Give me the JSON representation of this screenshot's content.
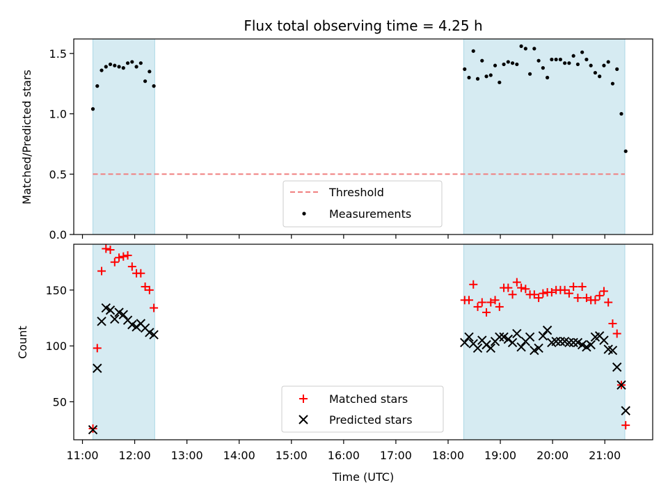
{
  "chart_data": [
    {
      "type": "scatter",
      "title": "Flux total observing time = 4.25 h",
      "ylabel": "Matched/Predicted stars",
      "xlabel": "",
      "xlim": [
        "10:50",
        "21:55"
      ],
      "ylim": [
        0,
        1.62
      ],
      "yticks": [
        0.0,
        0.5,
        1.0,
        1.5
      ],
      "ytick_labels": [
        "0.0",
        "0.5",
        "1.0",
        "1.5"
      ],
      "grid": false,
      "legend_position": "lower-center",
      "observing_windows": [
        [
          "11:12",
          "12:23"
        ],
        [
          "18:18",
          "21:23"
        ]
      ],
      "threshold": {
        "name": "Threshold",
        "value": 0.5,
        "x_range": [
          "11:12",
          "21:23"
        ],
        "color": "#f08080",
        "style": "dashed"
      },
      "series": [
        {
          "name": "Measurements",
          "color": "#000000",
          "marker": "dot",
          "x": [
            "11:12",
            "11:17",
            "11:22",
            "11:27",
            "11:32",
            "11:37",
            "11:42",
            "11:47",
            "11:52",
            "11:57",
            "12:02",
            "12:07",
            "12:12",
            "12:17",
            "12:22",
            "18:19",
            "18:24",
            "18:29",
            "18:34",
            "18:39",
            "18:44",
            "18:49",
            "18:54",
            "18:59",
            "19:04",
            "19:09",
            "19:14",
            "19:19",
            "19:24",
            "19:29",
            "19:34",
            "19:39",
            "19:44",
            "19:49",
            "19:54",
            "19:59",
            "20:04",
            "20:09",
            "20:14",
            "20:19",
            "20:24",
            "20:29",
            "20:34",
            "20:39",
            "20:44",
            "20:49",
            "20:54",
            "20:59",
            "21:04",
            "21:09",
            "21:14",
            "21:19",
            "21:24"
          ],
          "y": [
            1.04,
            1.23,
            1.36,
            1.39,
            1.41,
            1.4,
            1.39,
            1.38,
            1.42,
            1.43,
            1.39,
            1.42,
            1.27,
            1.35,
            1.23,
            1.37,
            1.3,
            1.52,
            1.29,
            1.44,
            1.31,
            1.32,
            1.4,
            1.26,
            1.41,
            1.43,
            1.42,
            1.41,
            1.56,
            1.54,
            1.33,
            1.54,
            1.44,
            1.38,
            1.3,
            1.45,
            1.45,
            1.45,
            1.42,
            1.42,
            1.48,
            1.41,
            1.51,
            1.45,
            1.4,
            1.34,
            1.31,
            1.4,
            1.43,
            1.25,
            1.37,
            1.0,
            0.69
          ]
        }
      ]
    },
    {
      "type": "scatter",
      "title": "",
      "ylabel": "Count",
      "xlabel": "Time (UTC)",
      "xlim": [
        "10:50",
        "21:55"
      ],
      "ylim": [
        16,
        191
      ],
      "yticks": [
        50,
        100,
        150
      ],
      "ytick_labels": [
        "50",
        "100",
        "150"
      ],
      "xticks": [
        "11:00",
        "12:00",
        "13:00",
        "14:00",
        "15:00",
        "16:00",
        "17:00",
        "18:00",
        "19:00",
        "20:00",
        "21:00"
      ],
      "grid": false,
      "legend_position": "lower-center",
      "observing_windows": [
        [
          "11:12",
          "12:23"
        ],
        [
          "18:18",
          "21:23"
        ]
      ],
      "series": [
        {
          "name": "Matched stars",
          "color": "#ff0000",
          "marker": "plus",
          "x": [
            "11:12",
            "11:17",
            "11:22",
            "11:27",
            "11:32",
            "11:37",
            "11:42",
            "11:47",
            "11:52",
            "11:57",
            "12:02",
            "12:07",
            "12:12",
            "12:17",
            "12:22",
            "18:19",
            "18:24",
            "18:29",
            "18:34",
            "18:39",
            "18:44",
            "18:49",
            "18:54",
            "18:59",
            "19:04",
            "19:09",
            "19:14",
            "19:19",
            "19:24",
            "19:29",
            "19:34",
            "19:39",
            "19:44",
            "19:49",
            "19:54",
            "19:59",
            "20:04",
            "20:09",
            "20:14",
            "20:19",
            "20:24",
            "20:29",
            "20:34",
            "20:39",
            "20:44",
            "20:49",
            "20:54",
            "20:59",
            "21:04",
            "21:09",
            "21:14",
            "21:19",
            "21:24"
          ],
          "y": [
            26,
            98,
            167,
            187,
            186,
            175,
            179,
            180,
            181,
            171,
            165,
            165,
            153,
            150,
            134,
            141,
            141,
            155,
            135,
            139,
            130,
            139,
            141,
            135,
            152,
            152,
            146,
            157,
            152,
            151,
            146,
            146,
            143,
            147,
            148,
            148,
            150,
            150,
            150,
            147,
            153,
            143,
            153,
            143,
            141,
            141,
            145,
            149,
            139,
            120,
            111,
            65,
            29
          ]
        },
        {
          "name": "Predicted stars",
          "color": "#000000",
          "marker": "x",
          "x": [
            "11:12",
            "11:17",
            "11:22",
            "11:27",
            "11:32",
            "11:37",
            "11:42",
            "11:47",
            "11:52",
            "11:57",
            "12:02",
            "12:07",
            "12:12",
            "12:17",
            "12:22",
            "18:19",
            "18:24",
            "18:29",
            "18:34",
            "18:39",
            "18:44",
            "18:49",
            "18:54",
            "18:59",
            "19:04",
            "19:09",
            "19:14",
            "19:19",
            "19:24",
            "19:29",
            "19:34",
            "19:39",
            "19:44",
            "19:49",
            "19:54",
            "19:59",
            "20:04",
            "20:09",
            "20:14",
            "20:19",
            "20:24",
            "20:29",
            "20:34",
            "20:39",
            "20:44",
            "20:49",
            "20:54",
            "20:59",
            "21:04",
            "21:09",
            "21:14",
            "21:19",
            "21:24"
          ],
          "y": [
            25,
            80,
            122,
            134,
            132,
            124,
            130,
            128,
            123,
            119,
            117,
            120,
            116,
            112,
            110,
            103,
            108,
            102,
            98,
            105,
            101,
            98,
            104,
            108,
            108,
            106,
            103,
            111,
            99,
            104,
            108,
            96,
            98,
            109,
            114,
            103,
            104,
            104,
            104,
            103,
            103,
            103,
            101,
            99,
            101,
            108,
            109,
            105,
            97,
            96,
            81,
            65,
            42
          ]
        }
      ]
    }
  ]
}
